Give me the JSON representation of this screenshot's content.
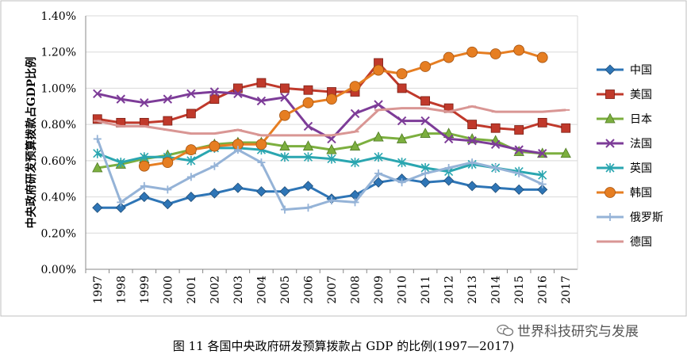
{
  "caption": "图 11  各国中央政府研发预算拨款占 GDP 的比例(1997—2017)",
  "watermark": "世界科技研究与发展",
  "chart_data": {
    "type": "line",
    "title": "",
    "ylabel": "中央政府研发预算拨款占GDP比例",
    "xlabel": "",
    "ylim": [
      0,
      1.4
    ],
    "yticks": [
      "0.00%",
      "0.20%",
      "0.40%",
      "0.60%",
      "0.80%",
      "1.00%",
      "1.20%",
      "1.40%"
    ],
    "ytick_values": [
      0,
      0.2,
      0.4,
      0.6,
      0.8,
      1.0,
      1.2,
      1.4
    ],
    "categories": [
      "1997",
      "1998",
      "1999",
      "2000",
      "2001",
      "2002",
      "2003",
      "2004",
      "2005",
      "2006",
      "2007",
      "2008",
      "2009",
      "2010",
      "2011",
      "2012",
      "2013",
      "2014",
      "2015",
      "2016",
      "2017"
    ],
    "legend_position": "right",
    "series": [
      {
        "name": "中国",
        "color": "#2E75B6",
        "marker": "diamond",
        "values": [
          0.34,
          0.34,
          0.4,
          0.36,
          0.4,
          0.42,
          0.45,
          0.43,
          0.43,
          0.46,
          0.39,
          0.41,
          0.48,
          0.5,
          0.48,
          0.49,
          0.46,
          0.45,
          0.44,
          0.44,
          null
        ]
      },
      {
        "name": "美国",
        "color": "#C0392B",
        "marker": "square",
        "values": [
          0.83,
          0.81,
          0.81,
          0.82,
          0.86,
          0.94,
          1.0,
          1.03,
          1.0,
          0.99,
          0.98,
          0.98,
          1.14,
          1.0,
          0.93,
          0.89,
          0.8,
          0.78,
          0.77,
          0.81,
          0.78
        ]
      },
      {
        "name": "日本",
        "color": "#7CAF3F",
        "marker": "triangle",
        "values": [
          0.56,
          0.58,
          0.61,
          0.63,
          0.66,
          0.69,
          0.7,
          0.7,
          0.68,
          0.68,
          0.66,
          0.68,
          0.73,
          0.72,
          0.75,
          0.75,
          0.72,
          0.71,
          0.65,
          0.64,
          0.64
        ]
      },
      {
        "name": "法国",
        "color": "#7D3C98",
        "marker": "x",
        "values": [
          0.97,
          0.94,
          0.92,
          0.94,
          0.97,
          0.98,
          0.97,
          0.93,
          0.95,
          0.79,
          0.72,
          0.86,
          0.91,
          0.82,
          0.82,
          0.72,
          0.71,
          0.69,
          0.66,
          0.64,
          null
        ]
      },
      {
        "name": "英国",
        "color": "#2AA6B0",
        "marker": "asterisk",
        "values": [
          0.64,
          0.59,
          0.62,
          0.62,
          0.6,
          0.67,
          0.67,
          0.66,
          0.62,
          0.62,
          0.61,
          0.59,
          0.62,
          0.59,
          0.56,
          0.54,
          0.58,
          0.56,
          0.54,
          0.52,
          null
        ]
      },
      {
        "name": "韩国",
        "color": "#E67E22",
        "marker": "circle",
        "values": [
          null,
          null,
          0.57,
          0.59,
          0.66,
          0.68,
          0.69,
          0.69,
          0.85,
          0.92,
          0.94,
          1.01,
          1.1,
          1.08,
          1.12,
          1.17,
          1.2,
          1.19,
          1.21,
          1.17,
          null
        ]
      },
      {
        "name": "俄罗斯",
        "color": "#95B3D7",
        "marker": "plus",
        "values": [
          0.72,
          0.37,
          0.46,
          0.44,
          0.51,
          0.57,
          0.66,
          0.59,
          0.33,
          0.34,
          0.38,
          0.37,
          0.53,
          0.48,
          0.53,
          0.56,
          0.59,
          0.56,
          0.53,
          0.47,
          null
        ]
      },
      {
        "name": "德国",
        "color": "#D99694",
        "marker": "dash",
        "values": [
          0.82,
          0.79,
          0.79,
          0.77,
          0.75,
          0.75,
          0.77,
          0.74,
          0.74,
          0.74,
          0.74,
          0.76,
          0.88,
          0.89,
          0.89,
          0.87,
          0.9,
          0.87,
          0.87,
          0.87,
          0.88
        ]
      }
    ]
  }
}
